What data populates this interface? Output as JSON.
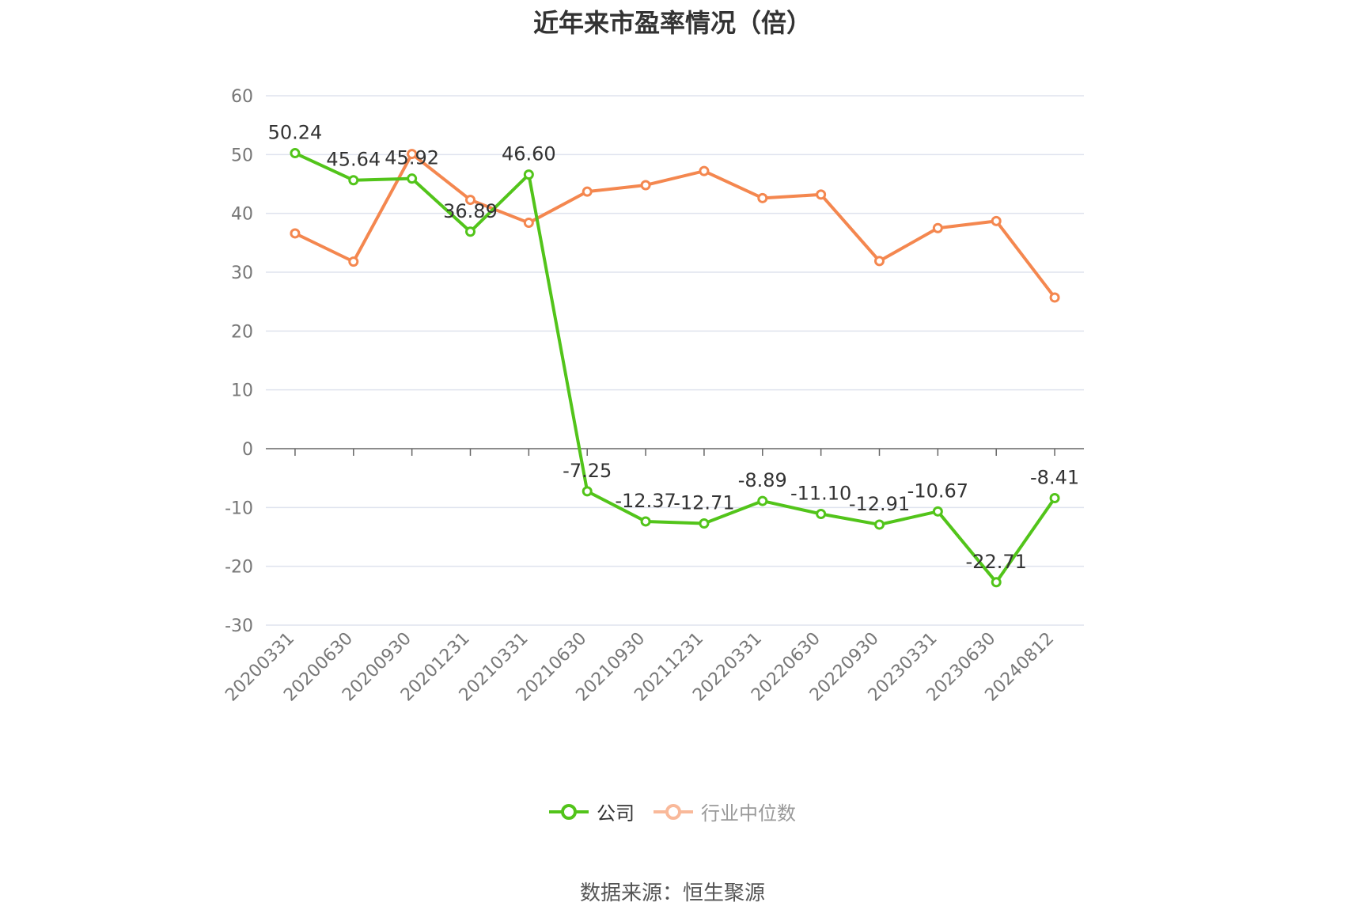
{
  "chart_data": {
    "type": "line",
    "title": "近年来市盈率情况（倍）",
    "categories": [
      "20200331",
      "20200630",
      "20200930",
      "20201231",
      "20210331",
      "20210630",
      "20210930",
      "20211231",
      "20220331",
      "20220630",
      "20220930",
      "20230331",
      "20230630",
      "20240812"
    ],
    "ylim": [
      -30,
      60
    ],
    "yticks": [
      60,
      50,
      40,
      30,
      20,
      10,
      0,
      -10,
      -20,
      -30
    ],
    "grid": true,
    "legend_position": "bottom",
    "series": [
      {
        "name": "公司",
        "color": "#52c41a",
        "values": [
          50.24,
          45.64,
          45.92,
          36.89,
          46.6,
          -7.25,
          -12.37,
          -12.71,
          -8.89,
          -11.1,
          -12.91,
          -10.67,
          -22.71,
          -8.41
        ],
        "labels": [
          "50.24",
          "45.64",
          "45.92",
          "36.89",
          "46.60",
          "-7.25",
          "-12.37",
          "-12.71",
          "-8.89",
          "-11.10",
          "-12.91",
          "-10.67",
          "-22.71",
          "-8.41"
        ]
      },
      {
        "name": "行业中位数",
        "color": "#f4874f",
        "values": [
          36.6,
          31.8,
          50.1,
          42.3,
          38.4,
          43.7,
          44.8,
          47.2,
          42.6,
          43.2,
          31.9,
          37.5,
          38.7,
          25.7
        ]
      }
    ],
    "source": "数据来源：恒生聚源"
  }
}
